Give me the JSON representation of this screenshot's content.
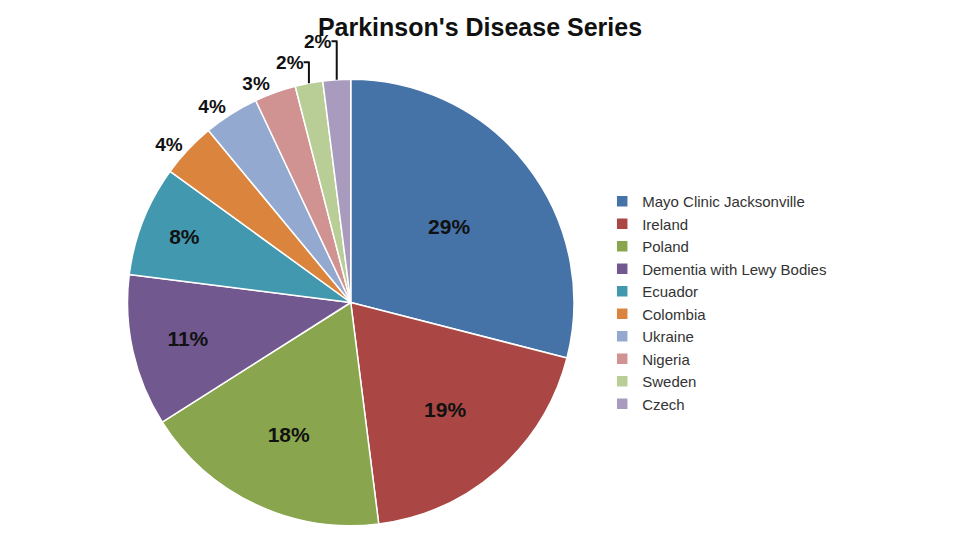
{
  "chart_data": {
    "type": "pie",
    "title": "Parkinson's Disease Series",
    "categories": [
      "Mayo Clinic Jacksonville",
      "Ireland",
      "Poland",
      "Dementia with Lewy Bodies",
      "Ecuador",
      "Colombia",
      "Ukraine",
      "Nigeria",
      "Sweden",
      "Czech"
    ],
    "values": [
      29,
      19,
      18,
      11,
      8,
      4,
      4,
      3,
      2,
      2
    ],
    "value_labels": [
      "29%",
      "19%",
      "18%",
      "11%",
      "8%",
      "4%",
      "4%",
      "3%",
      "2%",
      "2%"
    ],
    "colors": [
      "#4572A7",
      "#AA4643",
      "#89A54E",
      "#71588F",
      "#4198AF",
      "#DB843D",
      "#93A9CF",
      "#D19392",
      "#B9CD96",
      "#A99BBD"
    ],
    "data_labels": true,
    "legend": "right"
  }
}
